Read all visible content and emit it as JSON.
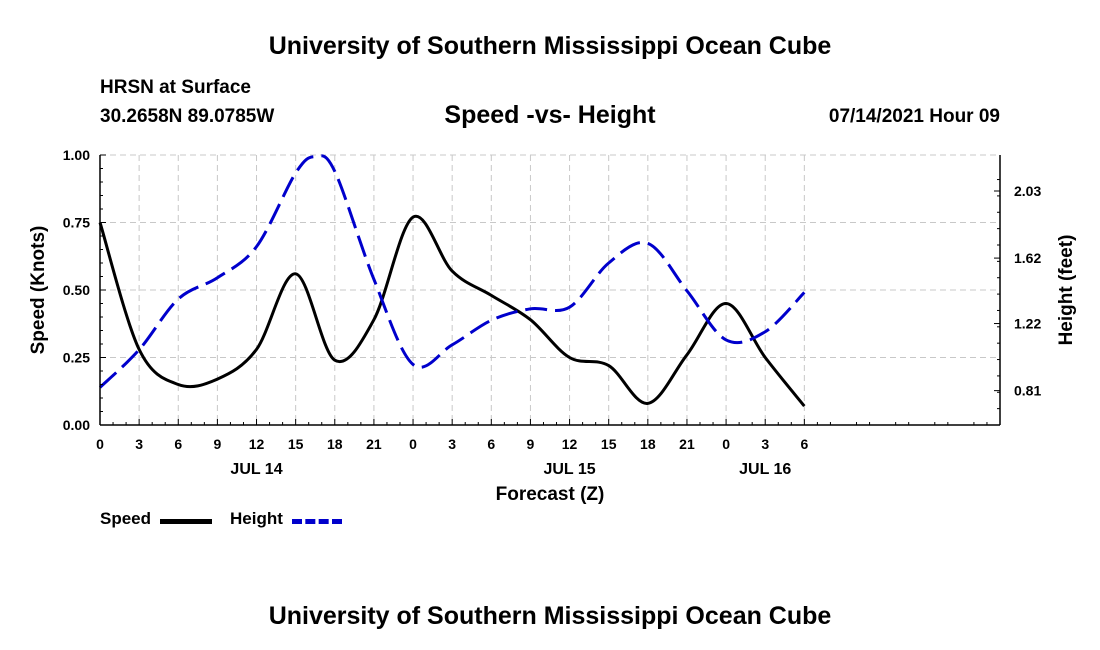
{
  "header": {
    "title": "University of Southern Mississippi Ocean Cube",
    "station": "HRSN at Surface",
    "coords": "30.2658N  89.0785W",
    "subtitle": "Speed -vs- Height",
    "datetime": "07/14/2021 Hour 09"
  },
  "footer": {
    "title": "University of Southern Mississippi Ocean Cube"
  },
  "colors": {
    "speed": "#000000",
    "height": "#0000cc",
    "grid": "#c8c8c8"
  },
  "legend": {
    "speed_label": "Speed",
    "height_label": "Height"
  },
  "chart_data": {
    "type": "line",
    "xlabel": "Forecast (Z)",
    "ylabel_left": "Speed (Knots)",
    "ylabel_right": "Height (feet)",
    "x_range": [
      0,
      69
    ],
    "ylim_left": [
      0,
      1.0
    ],
    "ylim_right": [
      0.6,
      2.25
    ],
    "left_ticks": [
      "0.00",
      "0.25",
      "0.50",
      "0.75",
      "1.00"
    ],
    "right_ticks": [
      "0.81",
      "1.22",
      "1.62",
      "2.03"
    ],
    "x_ticks": [
      {
        "x": 0,
        "label": "0"
      },
      {
        "x": 3,
        "label": "3"
      },
      {
        "x": 6,
        "label": "6"
      },
      {
        "x": 9,
        "label": "9"
      },
      {
        "x": 12,
        "label": "12"
      },
      {
        "x": 15,
        "label": "15"
      },
      {
        "x": 18,
        "label": "18"
      },
      {
        "x": 21,
        "label": "21"
      },
      {
        "x": 24,
        "label": "0"
      },
      {
        "x": 27,
        "label": "3"
      },
      {
        "x": 30,
        "label": "6"
      },
      {
        "x": 33,
        "label": "9"
      },
      {
        "x": 36,
        "label": "12"
      },
      {
        "x": 39,
        "label": "15"
      },
      {
        "x": 42,
        "label": "18"
      },
      {
        "x": 45,
        "label": "21"
      },
      {
        "x": 48,
        "label": "0"
      },
      {
        "x": 51,
        "label": "3"
      },
      {
        "x": 54,
        "label": "6"
      }
    ],
    "date_labels": [
      {
        "x": 12,
        "label": "JUL 14"
      },
      {
        "x": 36,
        "label": "JUL 15"
      },
      {
        "x": 51,
        "label": "JUL 16"
      }
    ],
    "series": [
      {
        "name": "Speed",
        "axis": "left",
        "style": "solid",
        "x": [
          0,
          3,
          6,
          9,
          12,
          15,
          18,
          21,
          24,
          27,
          30,
          33,
          36,
          39,
          42,
          45,
          48,
          51,
          54
        ],
        "values": [
          0.75,
          0.28,
          0.15,
          0.17,
          0.28,
          0.56,
          0.24,
          0.39,
          0.77,
          0.57,
          0.48,
          0.39,
          0.25,
          0.22,
          0.08,
          0.26,
          0.45,
          0.25,
          0.07
        ]
      },
      {
        "name": "Height",
        "axis": "right",
        "style": "dashed",
        "x": [
          0,
          3,
          6,
          9,
          12,
          15,
          16.5,
          18,
          21,
          24,
          27,
          30,
          33,
          36,
          39,
          42,
          45,
          48,
          51,
          54
        ],
        "values": [
          0.83,
          1.06,
          1.37,
          1.5,
          1.69,
          2.14,
          2.24,
          2.15,
          1.49,
          0.97,
          1.09,
          1.24,
          1.31,
          1.32,
          1.59,
          1.71,
          1.42,
          1.12,
          1.17,
          1.41
        ]
      }
    ]
  }
}
